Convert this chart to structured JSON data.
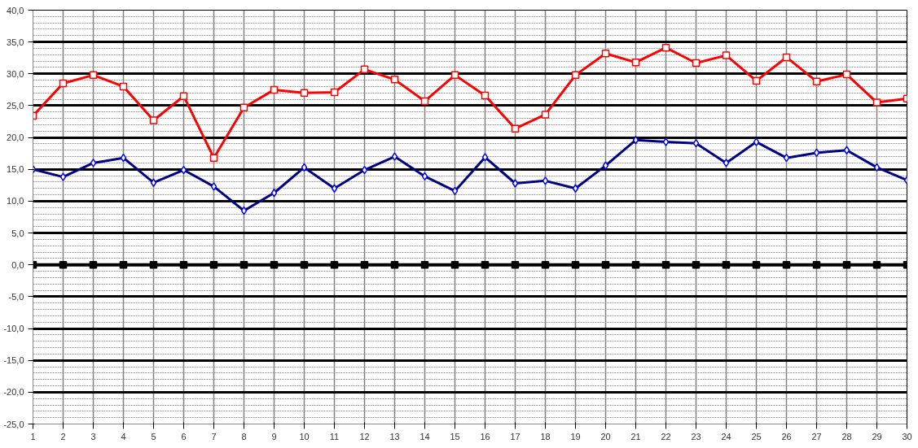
{
  "chart_data": {
    "type": "line",
    "x": [
      1,
      2,
      3,
      4,
      5,
      6,
      7,
      8,
      9,
      10,
      11,
      12,
      13,
      14,
      15,
      16,
      17,
      18,
      19,
      20,
      21,
      22,
      23,
      24,
      25,
      26,
      27,
      28,
      29,
      30
    ],
    "series": [
      {
        "color": "#ff0000",
        "marker": "square",
        "values": [
          23.4,
          28.5,
          29.8,
          28.0,
          22.7,
          26.5,
          16.8,
          24.7,
          27.5,
          27.0,
          27.1,
          30.7,
          29.1,
          25.7,
          29.8,
          26.6,
          21.4,
          23.6,
          29.8,
          33.2,
          31.8,
          34.1,
          31.7,
          32.9,
          28.9,
          32.6,
          28.8,
          29.9,
          25.5,
          26.1
        ]
      },
      {
        "color": "#000080",
        "marker": "diamond",
        "values": [
          15.0,
          13.8,
          16.0,
          16.8,
          12.9,
          14.9,
          12.3,
          8.5,
          11.3,
          15.3,
          12.0,
          14.9,
          17.0,
          13.9,
          11.6,
          16.9,
          12.8,
          13.2,
          12.0,
          15.6,
          19.6,
          19.3,
          19.1,
          16.0,
          19.3,
          16.8,
          17.6,
          18.0,
          15.3,
          13.3
        ]
      },
      {
        "color": "#000000",
        "marker": "square",
        "values": [
          0,
          0,
          0,
          0,
          0,
          0,
          0,
          0,
          0,
          0,
          0,
          0,
          0,
          0,
          0,
          0,
          0,
          0,
          0,
          0,
          0,
          0,
          0,
          0,
          0,
          0,
          0,
          0,
          0,
          0
        ]
      }
    ],
    "xlim": [
      1,
      30
    ],
    "xticks": [
      1,
      2,
      3,
      4,
      5,
      6,
      7,
      8,
      9,
      10,
      11,
      12,
      13,
      14,
      15,
      16,
      17,
      18,
      19,
      20,
      21,
      22,
      23,
      24,
      25,
      26,
      27,
      28,
      29,
      30
    ],
    "ylim": [
      -25,
      40
    ],
    "yticks": [
      {
        "value": -25,
        "label": "-25,0"
      },
      {
        "value": -20,
        "label": "-20,0"
      },
      {
        "value": -15,
        "label": "-15,0"
      },
      {
        "value": -10,
        "label": "-10,0"
      },
      {
        "value": -5,
        "label": "-5,0"
      },
      {
        "value": 0,
        "label": "0,0"
      },
      {
        "value": 5,
        "label": "5,0"
      },
      {
        "value": 10,
        "label": "10,0"
      },
      {
        "value": 15,
        "label": "15,0"
      },
      {
        "value": 20,
        "label": "20,0"
      },
      {
        "value": 25,
        "label": "25,0"
      },
      {
        "value": 30,
        "label": "30,0"
      },
      {
        "value": 35,
        "label": "35,0"
      },
      {
        "value": 40,
        "label": "40,0"
      }
    ],
    "grid": true,
    "line_style": "solid"
  }
}
